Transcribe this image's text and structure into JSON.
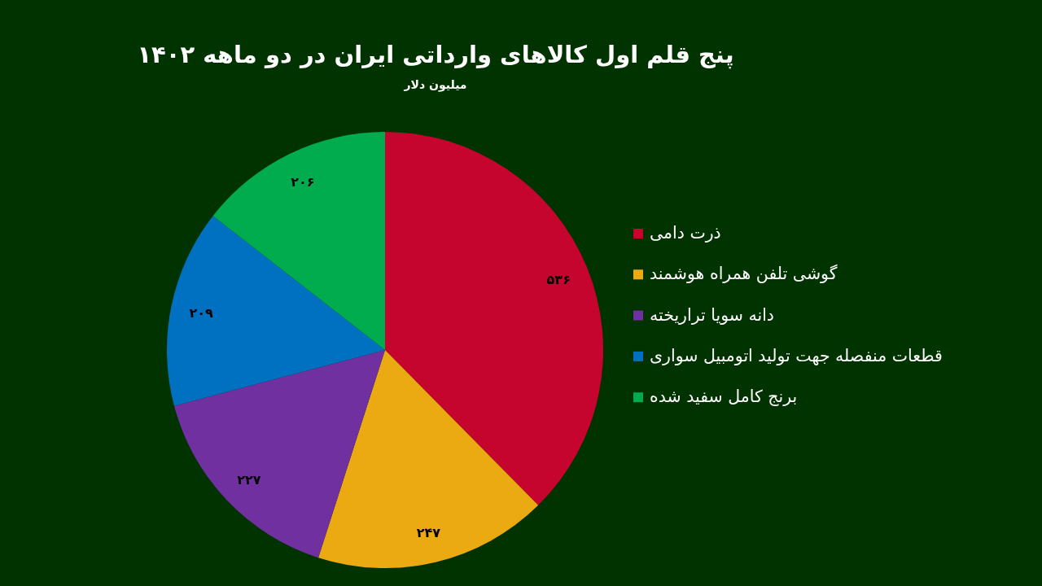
{
  "chart_data": {
    "type": "pie",
    "title": "پنج قلم اول کالاهای وارداتی ایران در دو ماهه ۱۴۰۲",
    "subtitle": "میلیون دلار",
    "categories": [
      "ذرت دامی",
      "گوشی تلفن همراه هوشمند",
      "دانه سویا تراریخته",
      "قطعات منفصله جهت تولید اتومبیل سواری",
      "برنج کامل سفید شده"
    ],
    "values": [
      536,
      247,
      227,
      209,
      206
    ],
    "colors": [
      "#c5052e",
      "#eba912",
      "#7030a0",
      "#0070c0",
      "#00ac4e"
    ],
    "value_labels": [
      "۵۳۶",
      "۲۴۷",
      "۲۲۷",
      "۲۰۹",
      "۲۰۶"
    ],
    "legend": "right"
  }
}
